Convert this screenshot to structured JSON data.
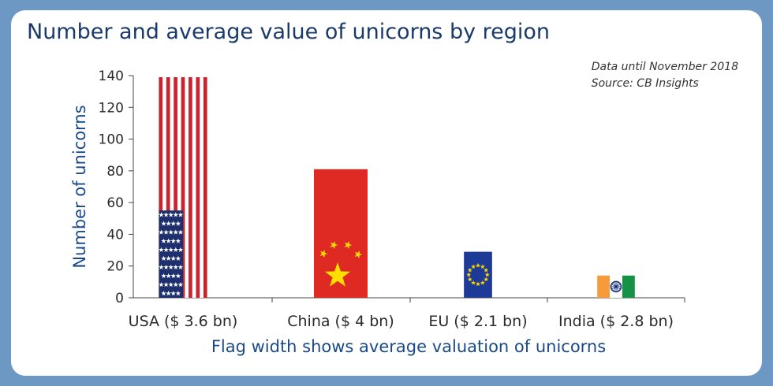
{
  "title": "Number and average value of unicorns by region",
  "note_lines": [
    "Data until November 2018",
    "Source: CB Insights"
  ],
  "colors": {
    "us_red": "#c8242e",
    "us_blue": "#1e2f6e",
    "china_red": "#de2a23",
    "china_yellow": "#ffde00",
    "eu_blue": "#1d3a96",
    "eu_yellow": "#ffd700",
    "india_saffron": "#f79a3c",
    "india_green": "#169247",
    "india_chakra": "#16307a",
    "title": "#1a3a6b",
    "axis_title": "#1a4a8a"
  },
  "chart_data": {
    "type": "bar",
    "categories": [
      "USA ($ 3.6 bn)",
      "China ($ 4 bn)",
      "EU ($ 2.1 bn)",
      "India ($ 2.8 bn)"
    ],
    "values": [
      139,
      81,
      29,
      14
    ],
    "widths": [
      3.6,
      4.0,
      2.1,
      2.8
    ],
    "flags": [
      "us-flag",
      "china-flag",
      "eu-flag",
      "india-flag"
    ],
    "ylabel": "Number of unicorns",
    "xlabel": "Flag width shows average valuation of unicorns",
    "ylim": [
      0,
      140
    ],
    "yticks": [
      0,
      20,
      40,
      60,
      80,
      100,
      120,
      140
    ],
    "grid": false
  }
}
